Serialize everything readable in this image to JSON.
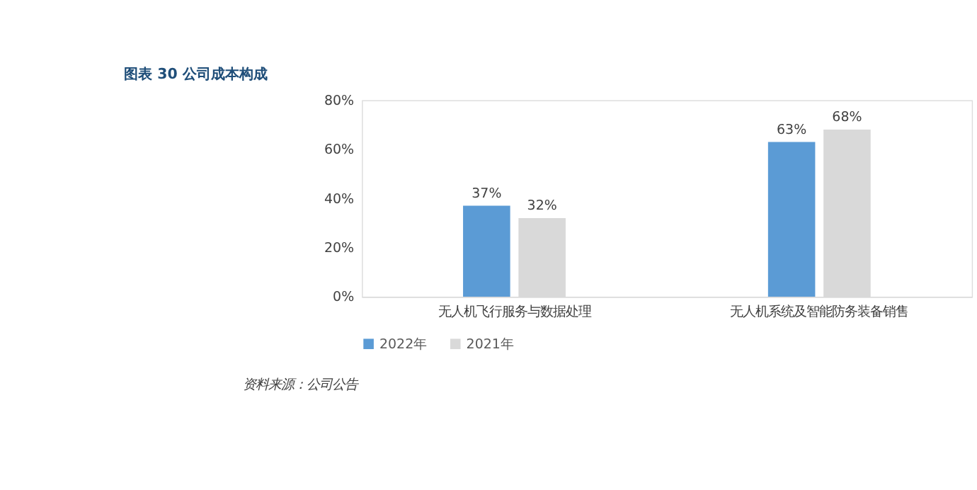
{
  "chart_data": {
    "type": "bar",
    "title": "图表 30   公司成本构成",
    "categories": [
      "无人机飞行服务与数据处理",
      "无人机系统及智能防务装备销售"
    ],
    "series": [
      {
        "name": "2022年",
        "color": "#5b9bd5",
        "values": [
          37,
          63
        ],
        "value_labels": [
          "37%",
          "63%"
        ]
      },
      {
        "name": "2021年",
        "color": "#d9d9d9",
        "values": [
          32,
          68
        ],
        "value_labels": [
          "32%",
          "68%"
        ]
      }
    ],
    "ylim": [
      0,
      80
    ],
    "yticks": [
      {
        "value": 0,
        "label": "0%"
      },
      {
        "value": 20,
        "label": "20%"
      },
      {
        "value": 40,
        "label": "40%"
      },
      {
        "value": 60,
        "label": "60%"
      },
      {
        "value": 80,
        "label": "80%"
      }
    ],
    "grid": false,
    "legend": "bottom",
    "annotations": [
      "资料来源：公司公告"
    ]
  }
}
